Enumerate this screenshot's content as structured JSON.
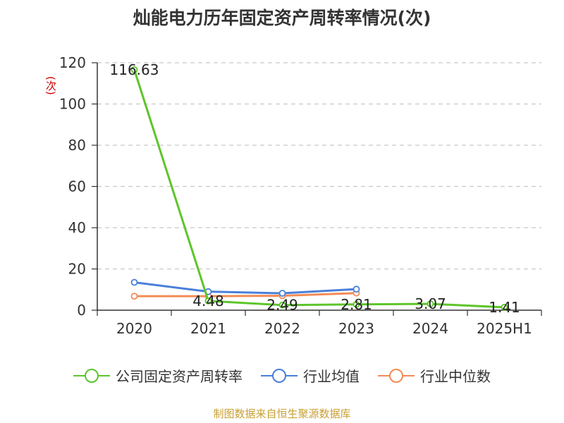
{
  "chart_data": {
    "type": "line",
    "title": "灿能电力历年固定资产周转率情况(次)",
    "ylabel": "(次)",
    "xlabel": "",
    "categories": [
      "2020",
      "2021",
      "2022",
      "2023",
      "2024",
      "2025H1"
    ],
    "ylim": [
      0,
      120
    ],
    "yticks": [
      0,
      20,
      40,
      60,
      80,
      100,
      120
    ],
    "grid": true,
    "legend_position": "bottom",
    "series": [
      {
        "name": "公司固定资产周转率",
        "color": "#5dc52a",
        "values": [
          116.63,
          4.48,
          2.49,
          2.81,
          3.07,
          1.41
        ],
        "labels": [
          "116.63",
          "4.48",
          "2.49",
          "2.81",
          "3.07",
          "1.41"
        ]
      },
      {
        "name": "行业均值",
        "color": "#4a7fd9",
        "values": [
          13.5,
          9.0,
          8.2,
          10.2,
          null,
          null
        ]
      },
      {
        "name": "行业中位数",
        "color": "#f38c55",
        "values": [
          6.8,
          6.8,
          7.0,
          8.3,
          null,
          null
        ]
      }
    ]
  },
  "source": "制图数据来自恒生聚源数据库"
}
